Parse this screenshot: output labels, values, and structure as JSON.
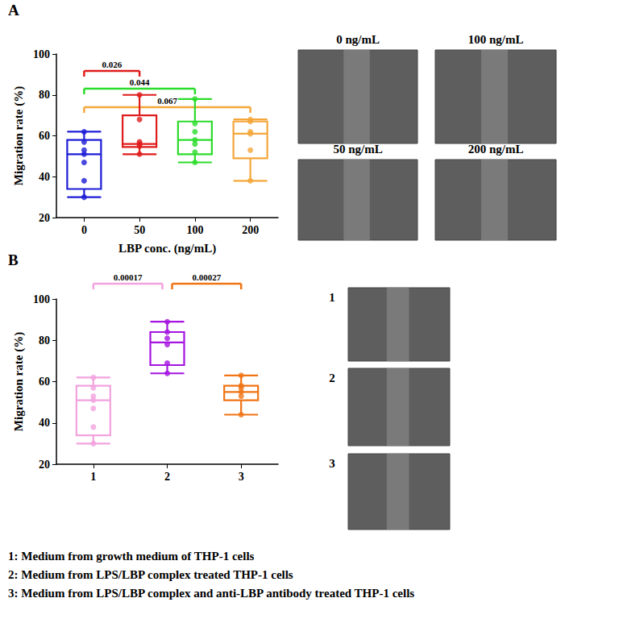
{
  "chart_data": [
    {
      "type": "boxplot",
      "panel": "A",
      "x_label": "LBP conc. (ng/mL)",
      "y_label": "Migration rate (%)",
      "categories": [
        "0",
        "50",
        "100",
        "200"
      ],
      "colors": [
        "#1c1cd6",
        "#e01b1b",
        "#2bdc2b",
        "#f5a63a"
      ],
      "boxes": [
        [
          30,
          34,
          51,
          58,
          62
        ],
        [
          51,
          54.5,
          56,
          70,
          80
        ],
        [
          47,
          51,
          58,
          67,
          78
        ],
        [
          38,
          49,
          61,
          67,
          68
        ]
      ],
      "points": [
        [
          62,
          57,
          53,
          51,
          47,
          38,
          30
        ],
        [
          80,
          68,
          57,
          56,
          55,
          51
        ],
        [
          78,
          66,
          62,
          58,
          56,
          52,
          47
        ],
        [
          68,
          67,
          62,
          61,
          53,
          38
        ]
      ],
      "ylim": [
        20,
        100
      ],
      "yticks": [
        20,
        40,
        60,
        80,
        100
      ],
      "grid": false,
      "annotations": [
        {
          "from": 0,
          "to": 1,
          "text": "0.026",
          "color": "#e01b1b"
        },
        {
          "from": 0,
          "to": 2,
          "text": "0.044",
          "color": "#2bdc2b"
        },
        {
          "from": 0,
          "to": 3,
          "text": "0.067",
          "color": "#f5a63a"
        }
      ],
      "images": [
        "0 ng/mL",
        "100 ng/mL",
        "50 ng/mL",
        "200 ng/mL"
      ]
    },
    {
      "type": "boxplot",
      "panel": "B",
      "y_label": "Migration rate (%)",
      "categories": [
        "1",
        "2",
        "3"
      ],
      "colors": [
        "#f2a2de",
        "#a514e0",
        "#f07414"
      ],
      "boxes": [
        [
          30,
          34,
          51,
          58,
          62
        ],
        [
          64,
          68,
          79,
          84,
          89
        ],
        [
          44,
          51,
          55,
          58,
          63
        ]
      ],
      "points": [
        [
          62,
          57,
          53,
          51,
          47,
          38,
          30
        ],
        [
          89,
          84,
          81,
          78,
          69,
          64
        ],
        [
          63,
          58,
          57,
          55,
          53,
          44
        ]
      ],
      "ylim": [
        20,
        100
      ],
      "yticks": [
        20,
        40,
        60,
        80,
        100
      ],
      "grid": false,
      "annotations": [
        {
          "from": 0,
          "to": 1,
          "text": "0.00017",
          "color": "#f2a2de"
        },
        {
          "from": 1,
          "to": 2,
          "text": "0.00027",
          "color": "#f07414"
        }
      ],
      "images": [
        "1",
        "2",
        "3"
      ],
      "footnotes": [
        "1: Medium from growth medium of THP-1 cells",
        "2: Medium from LPS/LBP complex treated THP-1 cells",
        "3: Medium from LPS/LBP complex and anti-LBP antibody treated THP-1 cells"
      ]
    }
  ]
}
